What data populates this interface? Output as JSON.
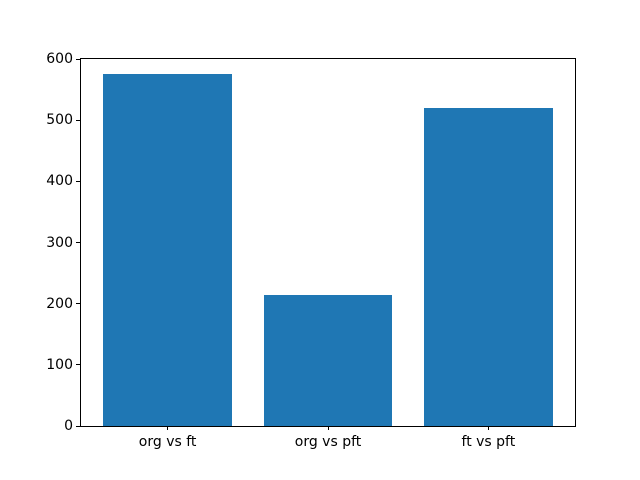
{
  "figure": {
    "background": "#ffffff",
    "title": ""
  },
  "chart_data": {
    "type": "bar",
    "title": "",
    "xlabel": "",
    "ylabel": "",
    "categories": [
      "org vs ft",
      "org vs pft",
      "ft vs pft"
    ],
    "values": [
      575,
      215,
      520
    ],
    "bar_color": "#1f77b4",
    "spine_color": "#000000",
    "tick_label_color": "#000000",
    "ylim": [
      0,
      600
    ],
    "yticks": [
      0,
      100,
      200,
      300,
      400,
      500,
      600
    ],
    "xlim": [
      -0.54,
      2.54
    ],
    "bar_centers": [
      0,
      1,
      2
    ],
    "bar_width": 0.8,
    "grid": false,
    "legend": null
  }
}
